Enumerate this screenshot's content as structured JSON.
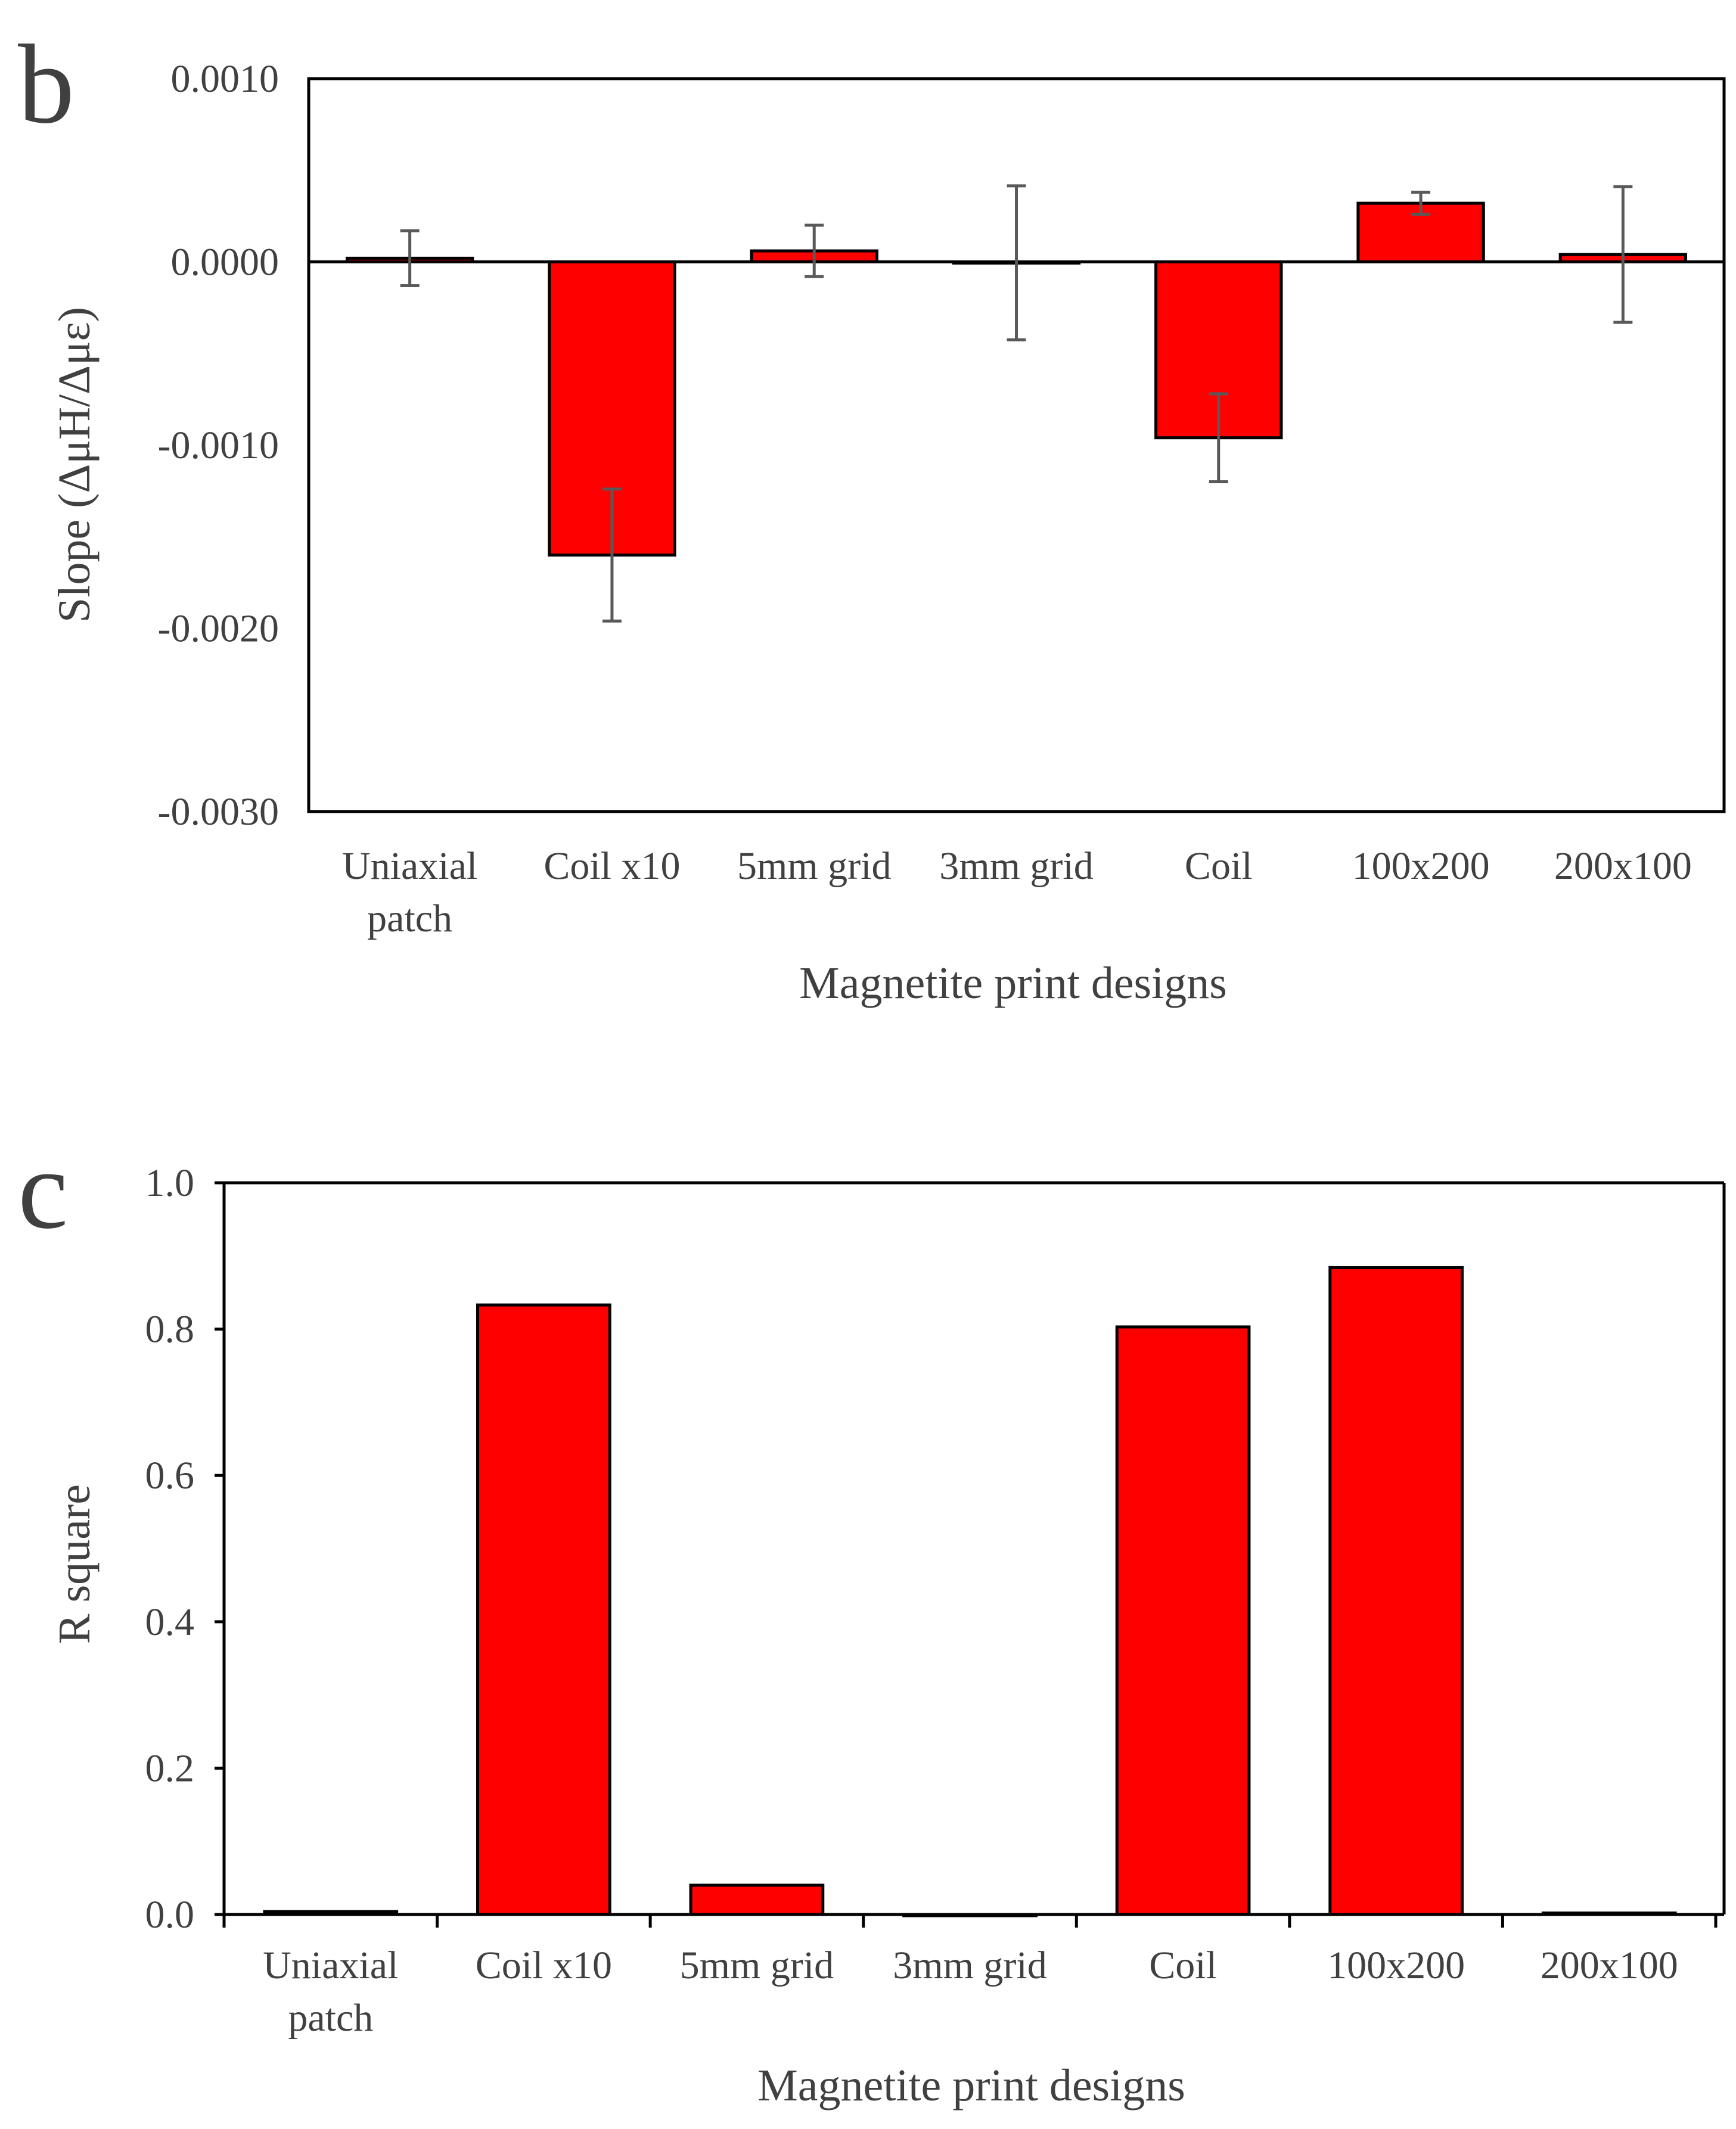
{
  "chart_data": [
    {
      "panel": "b",
      "type": "bar",
      "categories": [
        [
          "Uniaxial",
          "patch"
        ],
        [
          "Coil x10"
        ],
        [
          "5mm grid"
        ],
        [
          "3mm grid"
        ],
        [
          "Coil"
        ],
        [
          "100x200"
        ],
        [
          "200x100"
        ]
      ],
      "values": [
        2e-05,
        -0.0016,
        6e-05,
        -5e-06,
        -0.00096,
        0.00032,
        4e-05
      ],
      "errors": [
        0.00015,
        0.00036,
        0.00014,
        0.00042,
        0.00024,
        6e-05,
        0.00037
      ],
      "ylim": [
        -0.003,
        0.001
      ],
      "yticks": [
        0.001,
        0,
        -0.001,
        -0.002,
        -0.003
      ],
      "ytick_labels": [
        "0.0010",
        "0.0000",
        "-0.0010",
        "-0.0020",
        "-0.0030"
      ],
      "xlabel": "Magnetite print designs",
      "ylabel": "Slope (ΔμH/Δμε)",
      "bar_color": "#ff0000"
    },
    {
      "panel": "c",
      "type": "bar",
      "categories": [
        [
          "Uniaxial",
          "patch"
        ],
        [
          "Coil x10"
        ],
        [
          "5mm grid"
        ],
        [
          "3mm grid"
        ],
        [
          "Coil"
        ],
        [
          "100x200"
        ],
        [
          "200x100"
        ]
      ],
      "values": [
        0.004,
        0.833,
        0.04,
        0.0,
        0.803,
        0.884,
        0.002
      ],
      "ylim": [
        0,
        1.0
      ],
      "yticks": [
        0,
        0.2,
        0.4,
        0.6,
        0.8,
        1.0
      ],
      "ytick_labels": [
        "0.0",
        "0.2",
        "0.4",
        "0.6",
        "0.8",
        "1.0"
      ],
      "xlabel": "Magnetite print designs",
      "ylabel": "R square",
      "bar_color": "#ff0000"
    }
  ]
}
